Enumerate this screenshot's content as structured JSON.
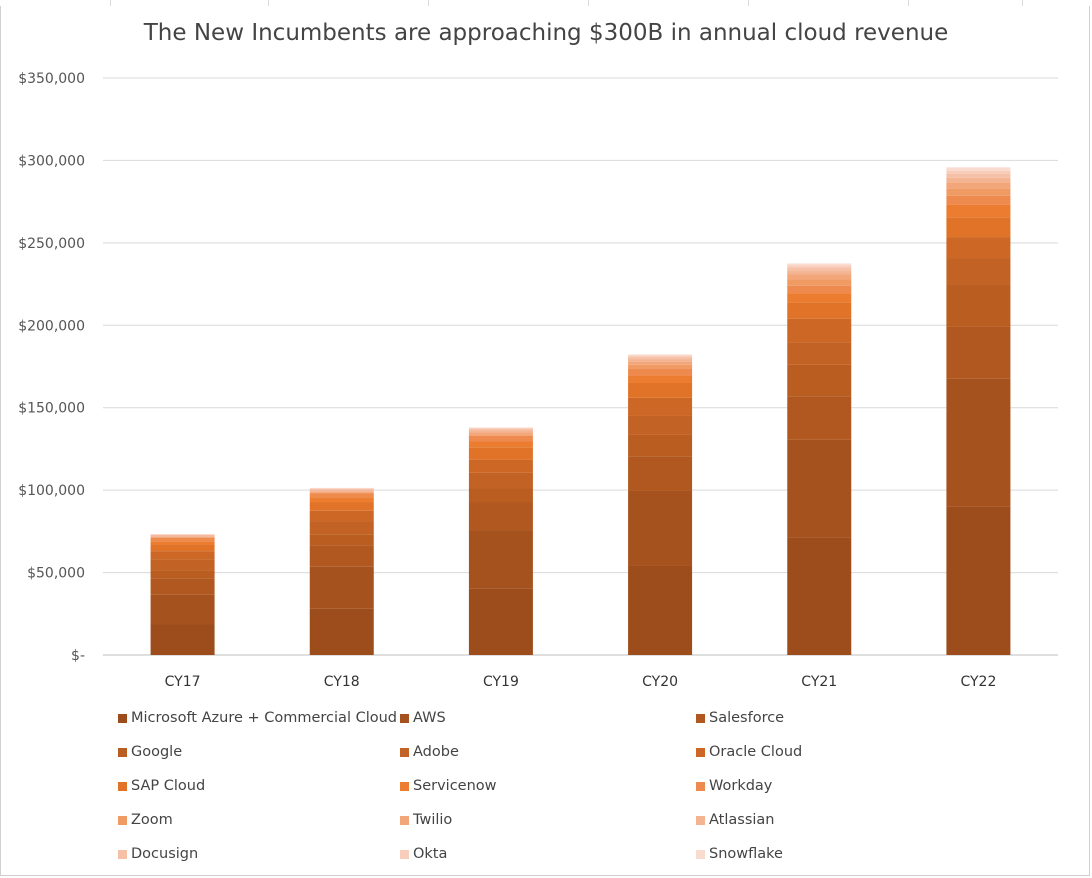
{
  "chart_data": {
    "type": "bar",
    "stacked": true,
    "title": "The New Incumbents are approaching $300B in annual cloud revenue",
    "categories": [
      "CY17",
      "CY18",
      "CY19",
      "CY20",
      "CY21",
      "CY22"
    ],
    "y_tick_labels": [
      "$-",
      "$50,000",
      "$100,000",
      "$150,000",
      "$200,000",
      "$250,000",
      "$300,000",
      "$350,000"
    ],
    "y_ticks": [
      0,
      50000,
      100000,
      150000,
      200000,
      250000,
      300000,
      350000
    ],
    "ylim": [
      0,
      350000
    ],
    "grid": true,
    "legend_position": "bottom",
    "series": [
      {
        "name": "Microsoft Azure + Commercial Cloud",
        "color": "#9c4d1b",
        "values": [
          18500,
          28000,
          40500,
          54000,
          71500,
          90000
        ]
      },
      {
        "name": "AWS",
        "color": "#a6521e",
        "values": [
          18000,
          25500,
          35000,
          45500,
          59000,
          77500
        ]
      },
      {
        "name": "Salesforce",
        "color": "#b0581f",
        "values": [
          10000,
          13000,
          17000,
          21000,
          26500,
          31500
        ]
      },
      {
        "name": "Google",
        "color": "#b95d21",
        "values": [
          5000,
          6500,
          8500,
          13000,
          19000,
          26000
        ]
      },
      {
        "name": "Adobe",
        "color": "#c26224",
        "values": [
          6500,
          8000,
          9500,
          11500,
          13500,
          15500
        ]
      },
      {
        "name": "Oracle Cloud",
        "color": "#cc6726",
        "values": [
          5000,
          6500,
          8000,
          11000,
          14500,
          13000
        ]
      },
      {
        "name": "SAP Cloud",
        "color": "#e07328",
        "values": [
          4000,
          5000,
          7500,
          9000,
          10000,
          12000
        ]
      },
      {
        "name": "Servicenow",
        "color": "#ec7d30",
        "values": [
          2000,
          3000,
          3500,
          4500,
          5500,
          7500
        ]
      },
      {
        "name": "Workday",
        "color": "#ee8a4d",
        "values": [
          2000,
          2500,
          3500,
          4000,
          4500,
          5500
        ]
      },
      {
        "name": "Zoom",
        "color": "#f09a64",
        "values": [
          300,
          500,
          900,
          2600,
          4000,
          4400
        ]
      },
      {
        "name": "Twilio",
        "color": "#f2a67a",
        "values": [
          400,
          600,
          1100,
          1800,
          2800,
          3800
        ]
      },
      {
        "name": "Atlassian",
        "color": "#f4b391",
        "values": [
          800,
          900,
          1200,
          1600,
          2100,
          2800
        ]
      },
      {
        "name": "Docusign",
        "color": "#f6c0a6",
        "values": [
          500,
          700,
          1000,
          1400,
          2100,
          2500
        ]
      },
      {
        "name": "Okta",
        "color": "#f8cdbb",
        "values": [
          250,
          400,
          600,
          800,
          1300,
          1800
        ]
      },
      {
        "name": "Snowflake",
        "color": "#fadbcf",
        "values": [
          100,
          250,
          300,
          600,
          1200,
          2000
        ]
      }
    ]
  }
}
